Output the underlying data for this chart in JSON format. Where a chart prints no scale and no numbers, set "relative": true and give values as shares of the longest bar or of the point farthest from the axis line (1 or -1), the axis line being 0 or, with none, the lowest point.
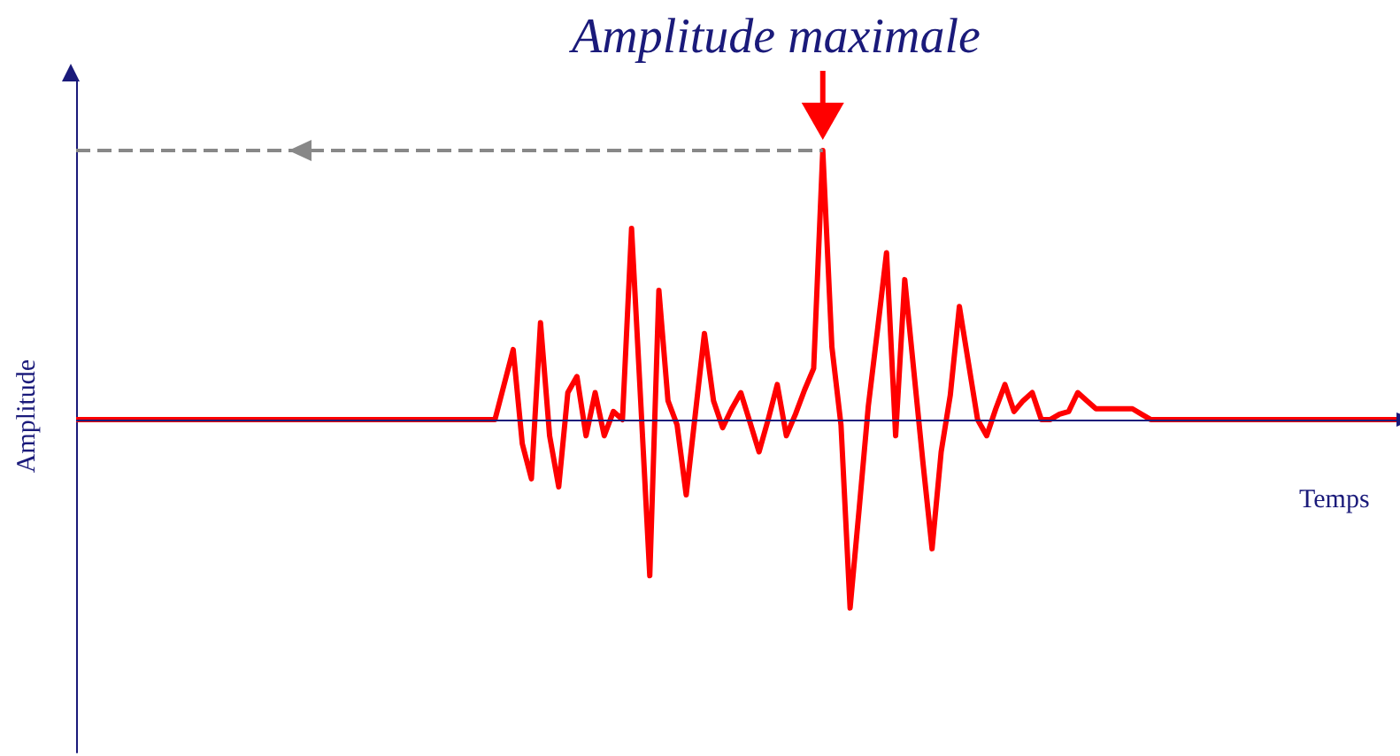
{
  "chart_data": {
    "type": "line",
    "title": "Amplitude maximale",
    "xlabel": "Temps",
    "ylabel": "Amplitude",
    "relative": true,
    "categories": [
      null,
      null,
      null,
      null,
      null,
      null,
      null,
      null,
      null,
      null,
      null,
      null,
      null,
      null,
      null,
      null,
      null,
      null,
      null,
      null,
      null,
      null,
      null,
      null,
      null,
      null,
      null,
      null,
      null,
      null,
      null,
      null,
      null,
      null,
      null,
      null,
      null,
      null,
      null,
      null,
      null,
      null,
      null,
      null,
      null,
      null,
      null,
      null,
      null,
      null,
      null,
      null,
      null,
      null,
      null,
      null,
      null,
      null,
      null,
      null,
      null,
      null,
      null,
      null,
      null,
      null,
      null,
      null,
      null,
      null,
      null,
      null,
      null,
      null,
      null,
      null,
      null,
      null,
      null,
      null,
      null,
      null,
      null,
      null,
      null,
      null,
      null,
      null,
      null,
      null,
      null,
      null,
      null,
      null,
      null,
      null,
      null,
      null,
      null,
      null,
      null,
      null,
      null,
      null,
      null,
      null,
      null,
      null,
      null,
      null,
      null,
      null,
      null,
      null,
      null,
      null,
      null,
      null,
      null,
      null,
      null,
      null,
      null,
      null,
      null,
      null,
      null,
      null,
      null,
      null,
      null,
      null,
      null,
      null,
      null,
      null,
      null,
      null,
      null,
      null,
      null,
      null,
      null,
      null,
      null,
      null
    ],
    "series": [
      {
        "color": "#ff0000",
        "values": [
          0,
          0,
          0,
          0,
          0,
          0,
          0,
          0,
          0,
          0,
          0,
          0,
          0,
          0,
          0,
          0,
          0,
          0,
          0,
          0,
          0,
          0,
          0,
          0,
          0,
          0,
          0,
          0,
          0,
          0,
          0,
          0,
          0,
          0,
          0,
          0,
          0,
          0,
          0,
          0,
          0,
          0,
          0,
          0,
          0,
          0,
          0,
          0.13,
          0.26,
          -0.09,
          -0.22,
          0.36,
          -0.06,
          -0.25,
          0.1,
          0.16,
          -0.06,
          0.1,
          -0.06,
          0.03,
          0,
          0.71,
          0.07,
          -0.58,
          0.48,
          0.07,
          -0.02,
          -0.28,
          0.02,
          0.32,
          0.07,
          -0.03,
          0.04,
          0.1,
          -0.01,
          -0.12,
          0,
          0.13,
          -0.06,
          0.02,
          0.11,
          0.19,
          1,
          0.27,
          -0.02,
          -0.7,
          -0.33,
          0.05,
          0.33,
          0.62,
          -0.06,
          0.52,
          0.18,
          -0.16,
          -0.48,
          -0.12,
          0.09,
          0.42,
          0.21,
          0,
          -0.06,
          0.04,
          0.13,
          0.03,
          0.07,
          0.1,
          0,
          0,
          0.02,
          0.03,
          0.1,
          0.07,
          0.04,
          0.04,
          0.04,
          0.04,
          0.04,
          0.02,
          0,
          0,
          0,
          0,
          0,
          0,
          0,
          0,
          0,
          0,
          0,
          0,
          0,
          0,
          0,
          0,
          0,
          0,
          0,
          0,
          0,
          0,
          0,
          0,
          0,
          0,
          0,
          0
        ]
      }
    ],
    "ref_lines": [
      {
        "axis": "y",
        "value": 1,
        "color": "#888888",
        "line_style": "dashed"
      },
      {
        "axis": "y",
        "value": 0,
        "color": "#1a1a7a",
        "line_style": "solid"
      }
    ]
  }
}
